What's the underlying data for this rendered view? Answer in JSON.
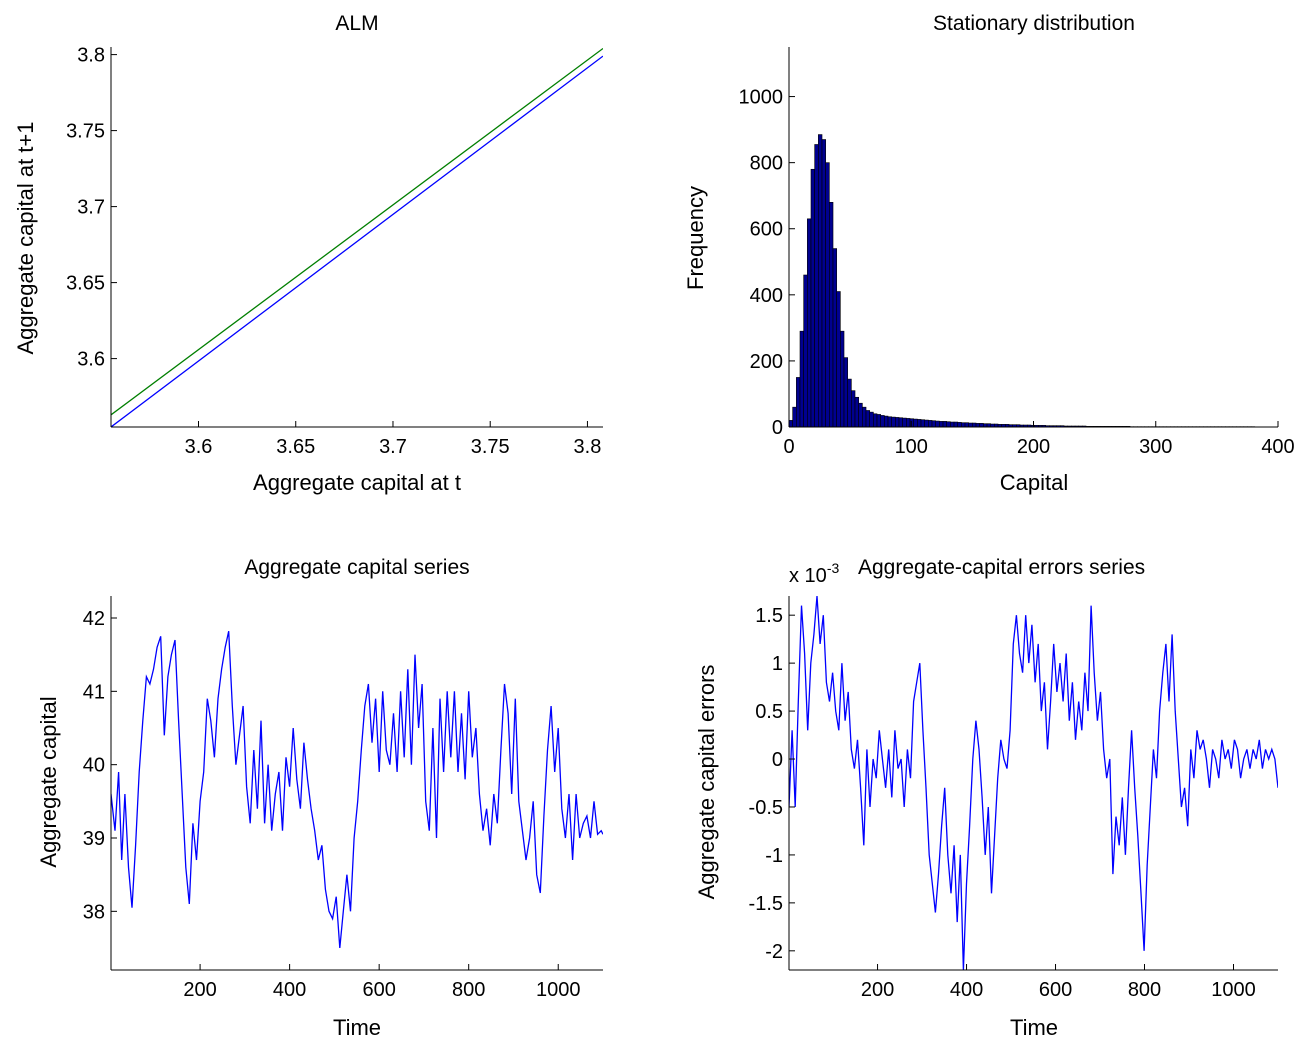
{
  "colors": {
    "blue": "#0000ff",
    "green": "#007f00",
    "bar_fill": "#00008f",
    "axis": "#000000"
  },
  "chart_data": [
    {
      "type": "line",
      "title": "ALM",
      "xlabel": "Aggregate capital at t",
      "ylabel": "Aggregate capital at t+1",
      "xlim": [
        3.555,
        3.808
      ],
      "ylim": [
        3.555,
        3.805
      ],
      "xticks": [
        3.6,
        3.65,
        3.7,
        3.75,
        3.8
      ],
      "xtick_labels": [
        "3.6",
        "3.65",
        "3.7",
        "3.75",
        "3.8"
      ],
      "yticks": [
        3.6,
        3.65,
        3.7,
        3.75,
        3.8
      ],
      "ytick_labels": [
        "3.6",
        "3.65",
        "3.7",
        "3.75",
        "3.8"
      ],
      "series": [
        {
          "color": "#007f00",
          "x": [
            3.555,
            3.808
          ],
          "y": [
            3.563,
            3.804
          ]
        },
        {
          "color": "#0000ff",
          "x": [
            3.555,
            3.808
          ],
          "y": [
            3.555,
            3.799
          ]
        }
      ]
    },
    {
      "type": "bar",
      "title": "Stationary distribution",
      "xlabel": "Capital",
      "ylabel": "Frequency",
      "xlim": [
        0,
        400
      ],
      "ylim": [
        0,
        1150
      ],
      "xticks": [
        0,
        100,
        200,
        300,
        400
      ],
      "xtick_labels": [
        "0",
        "100",
        "200",
        "300",
        "400"
      ],
      "yticks": [
        0,
        200,
        400,
        600,
        800,
        1000
      ],
      "ytick_labels": [
        "0",
        "200",
        "400",
        "600",
        "800",
        "1000"
      ],
      "bin_width": 3,
      "bin_start": 0,
      "values": [
        20,
        60,
        150,
        290,
        460,
        630,
        780,
        855,
        885,
        870,
        800,
        680,
        540,
        410,
        290,
        210,
        145,
        110,
        90,
        72,
        60,
        50,
        45,
        40,
        38,
        35,
        33,
        31,
        30,
        29,
        28,
        27,
        26,
        25,
        24,
        23,
        22,
        21,
        20,
        19,
        18,
        17,
        17,
        16,
        15,
        15,
        14,
        13,
        13,
        12,
        12,
        11,
        11,
        10,
        10,
        9,
        9,
        8,
        8,
        8,
        7,
        7,
        7,
        6,
        6,
        6,
        5,
        5,
        5,
        5,
        4,
        4,
        4,
        4,
        4,
        3,
        3,
        3,
        3,
        3,
        3,
        2,
        2,
        2,
        2,
        2,
        2,
        2,
        2,
        2,
        2,
        2,
        2,
        1,
        1,
        1,
        1,
        1,
        1,
        1,
        1,
        1,
        1,
        1,
        1,
        1,
        1,
        1,
        1,
        1,
        1,
        1,
        1,
        1,
        1,
        1,
        1,
        1,
        1,
        1,
        1,
        1,
        1,
        1,
        1,
        1,
        1
      ]
    },
    {
      "type": "line",
      "title": "Aggregate capital series",
      "xlabel": "Time",
      "ylabel": "Aggregate capital",
      "xlim": [
        1,
        1100
      ],
      "ylim": [
        37.2,
        42.3
      ],
      "xticks": [
        200,
        400,
        600,
        800,
        1000
      ],
      "xtick_labels": [
        "200",
        "400",
        "600",
        "800",
        "1000"
      ],
      "yticks": [
        38,
        39,
        40,
        41,
        42
      ],
      "ytick_labels": [
        "38",
        "39",
        "40",
        "41",
        "42"
      ],
      "series": [
        {
          "color": "#0000ff",
          "x": [
            1,
            10,
            18,
            25,
            32,
            40,
            48,
            56,
            64,
            72,
            80,
            88,
            96,
            104,
            112,
            120,
            128,
            136,
            144,
            152,
            160,
            168,
            176,
            184,
            192,
            200,
            208,
            216,
            224,
            232,
            240,
            248,
            256,
            264,
            272,
            280,
            288,
            296,
            304,
            312,
            320,
            328,
            336,
            344,
            352,
            360,
            368,
            376,
            384,
            392,
            400,
            408,
            416,
            424,
            432,
            440,
            448,
            456,
            464,
            472,
            480,
            488,
            496,
            504,
            512,
            520,
            528,
            536,
            544,
            552,
            560,
            568,
            576,
            584,
            592,
            600,
            608,
            616,
            624,
            632,
            640,
            648,
            656,
            664,
            672,
            680,
            688,
            696,
            704,
            712,
            720,
            728,
            736,
            744,
            752,
            760,
            768,
            776,
            784,
            792,
            800,
            808,
            816,
            824,
            832,
            840,
            848,
            856,
            864,
            872,
            880,
            888,
            896,
            904,
            912,
            920,
            928,
            936,
            944,
            952,
            960,
            968,
            976,
            984,
            992,
            1000,
            1008,
            1016,
            1024,
            1032,
            1040,
            1048,
            1056,
            1064,
            1072,
            1080,
            1088,
            1096,
            1100
          ],
          "y": [
            39.6,
            39.1,
            39.9,
            38.7,
            39.6,
            38.6,
            38.05,
            38.9,
            39.9,
            40.6,
            41.2,
            41.1,
            41.3,
            41.6,
            41.75,
            40.4,
            41.2,
            41.5,
            41.7,
            40.6,
            39.6,
            38.6,
            38.1,
            39.2,
            38.7,
            39.5,
            39.9,
            40.9,
            40.6,
            40.1,
            40.9,
            41.3,
            41.6,
            41.82,
            40.8,
            40.0,
            40.4,
            40.8,
            39.7,
            39.2,
            40.2,
            39.4,
            40.6,
            39.2,
            40.0,
            39.1,
            39.6,
            39.9,
            39.1,
            40.1,
            39.7,
            40.5,
            39.8,
            39.4,
            40.3,
            39.8,
            39.4,
            39.1,
            38.7,
            38.9,
            38.3,
            38.0,
            37.9,
            38.2,
            37.5,
            38.0,
            38.5,
            38.0,
            39.0,
            39.5,
            40.2,
            40.8,
            41.1,
            40.3,
            40.9,
            39.9,
            41.0,
            40.2,
            40.0,
            40.7,
            39.9,
            41.0,
            40.1,
            41.3,
            40.0,
            41.5,
            40.5,
            41.1,
            39.5,
            39.1,
            40.5,
            39.0,
            40.9,
            39.9,
            41.0,
            40.1,
            41.0,
            39.9,
            40.7,
            39.8,
            41.0,
            40.1,
            40.5,
            39.6,
            39.1,
            39.4,
            38.9,
            39.6,
            39.2,
            40.2,
            41.1,
            40.7,
            39.6,
            40.9,
            39.5,
            39.1,
            38.7,
            39.0,
            39.5,
            38.5,
            38.25,
            39.3,
            40.2,
            40.8,
            39.9,
            40.5,
            39.4,
            39.0,
            39.6,
            38.7,
            39.6,
            39.0,
            39.2,
            39.3,
            39.0,
            39.5,
            39.05,
            39.1,
            39.05
          ]
        }
      ]
    },
    {
      "type": "line",
      "title": "Aggregate-capital errors series",
      "xlabel": "Time",
      "ylabel": "Aggregate capital errors",
      "exponent_label": "x 10",
      "exponent_power": "-3",
      "xlim": [
        1,
        1100
      ],
      "ylim": [
        -2.2,
        1.7
      ],
      "xticks": [
        200,
        400,
        600,
        800,
        1000
      ],
      "xtick_labels": [
        "200",
        "400",
        "600",
        "800",
        "1000"
      ],
      "yticks": [
        -2,
        -1.5,
        -1,
        -0.5,
        0,
        0.5,
        1,
        1.5
      ],
      "ytick_labels": [
        "-2",
        "-1.5",
        "-1",
        "-0.5",
        "0",
        "0.5",
        "1",
        "1.5"
      ],
      "series": [
        {
          "color": "#0000ff",
          "x": [
            1,
            8,
            15,
            22,
            29,
            36,
            43,
            50,
            57,
            64,
            71,
            78,
            85,
            92,
            99,
            106,
            113,
            120,
            127,
            134,
            141,
            148,
            155,
            162,
            169,
            176,
            183,
            190,
            197,
            204,
            211,
            218,
            225,
            232,
            239,
            246,
            253,
            260,
            267,
            274,
            281,
            288,
            295,
            302,
            309,
            316,
            323,
            330,
            337,
            344,
            351,
            358,
            365,
            372,
            379,
            386,
            393,
            400,
            407,
            414,
            421,
            428,
            435,
            442,
            449,
            456,
            463,
            470,
            477,
            484,
            491,
            498,
            505,
            512,
            519,
            526,
            533,
            540,
            547,
            554,
            561,
            568,
            575,
            582,
            589,
            596,
            603,
            610,
            617,
            624,
            631,
            638,
            645,
            652,
            659,
            666,
            673,
            680,
            687,
            694,
            701,
            708,
            715,
            722,
            729,
            736,
            743,
            750,
            757,
            764,
            771,
            778,
            785,
            792,
            799,
            806,
            813,
            820,
            827,
            834,
            841,
            848,
            855,
            862,
            869,
            876,
            883,
            890,
            897,
            904,
            911,
            918,
            925,
            932,
            939,
            946,
            953,
            960,
            967,
            974,
            981,
            988,
            995,
            1002,
            1009,
            1016,
            1023,
            1030,
            1037,
            1044,
            1051,
            1058,
            1065,
            1072,
            1079,
            1086,
            1093,
            1100
          ],
          "y": [
            -0.5,
            0.3,
            -0.5,
            0.6,
            1.6,
            1.1,
            0.3,
            1.0,
            1.3,
            1.7,
            1.2,
            1.5,
            0.8,
            0.6,
            0.9,
            0.5,
            0.3,
            1.0,
            0.4,
            0.7,
            0.1,
            -0.1,
            0.2,
            -0.3,
            -0.9,
            0.1,
            -0.5,
            0.0,
            -0.2,
            0.3,
            0.0,
            -0.3,
            0.1,
            -0.4,
            0.3,
            -0.1,
            0.0,
            -0.5,
            0.1,
            -0.2,
            0.6,
            0.8,
            1.0,
            0.3,
            -0.3,
            -1.0,
            -1.3,
            -1.6,
            -1.2,
            -0.7,
            -0.3,
            -1.0,
            -1.4,
            -0.9,
            -1.7,
            -1.0,
            -2.2,
            -1.3,
            -0.7,
            0.0,
            0.4,
            0.1,
            -0.4,
            -1.0,
            -0.5,
            -1.4,
            -0.8,
            -0.2,
            0.2,
            0.0,
            -0.1,
            0.3,
            1.2,
            1.5,
            1.1,
            0.9,
            1.5,
            1.0,
            1.4,
            0.8,
            1.2,
            0.5,
            0.8,
            0.1,
            0.6,
            1.2,
            0.7,
            1.0,
            0.6,
            1.1,
            0.4,
            0.8,
            0.2,
            0.6,
            0.3,
            0.9,
            0.5,
            1.6,
            0.9,
            0.4,
            0.7,
            0.1,
            -0.2,
            0.0,
            -1.2,
            -0.6,
            -0.9,
            -0.4,
            -1.0,
            -0.3,
            0.3,
            -0.3,
            -0.8,
            -1.4,
            -2.0,
            -1.1,
            -0.5,
            0.1,
            -0.2,
            0.5,
            0.9,
            1.2,
            0.6,
            1.3,
            0.5,
            0.0,
            -0.5,
            -0.3,
            -0.7,
            0.1,
            -0.2,
            0.3,
            0.1,
            0.2,
            0.0,
            -0.3,
            0.1,
            0.0,
            -0.2,
            0.2,
            0.0,
            0.1,
            -0.1,
            0.2,
            0.1,
            -0.2,
            0.0,
            0.1,
            -0.1,
            0.1,
            0.0,
            0.2,
            -0.1,
            0.1,
            0.0,
            0.1,
            0.0,
            -0.3
          ]
        }
      ]
    }
  ]
}
